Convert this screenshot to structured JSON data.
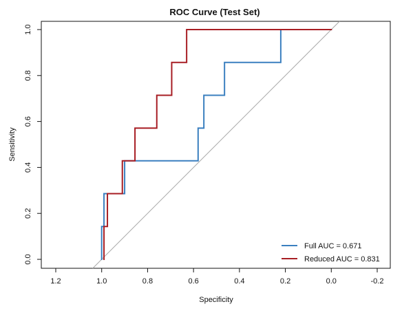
{
  "chart_data": {
    "type": "line",
    "title": "ROC Curve (Test Set)",
    "xlabel": "Specificity",
    "ylabel": "Sensitivity",
    "xlim": [
      1.2,
      -0.2
    ],
    "ylim": [
      0.0,
      1.0
    ],
    "x_reversed": true,
    "grid": false,
    "legend_position": "bottom-right",
    "x_ticks": [
      1.2,
      1.0,
      0.8,
      0.6,
      0.4,
      0.2,
      0.0,
      -0.2
    ],
    "x_tick_labels": [
      "1.2",
      "1.0",
      "0.8",
      "0.6",
      "0.4",
      "0.2",
      "0.0",
      "-0.2"
    ],
    "y_ticks": [
      0.0,
      0.2,
      0.4,
      0.6,
      0.8,
      1.0
    ],
    "y_tick_labels": [
      "0.0",
      "0.2",
      "0.4",
      "0.6",
      "0.8",
      "1.0"
    ],
    "diagonal": {
      "color": "#a8a8a8",
      "x": [
        1.0,
        0.0
      ],
      "y": [
        0.0,
        1.0
      ]
    },
    "series": [
      {
        "name": "Full",
        "legend_label": "Full  AUC = 0.671",
        "color": "#3a7fbf",
        "x": [
          1.0,
          1.0,
          0.99,
          0.99,
          0.9,
          0.9,
          0.58,
          0.58,
          0.555,
          0.555,
          0.465,
          0.465,
          0.22,
          0.22,
          0.0
        ],
        "y": [
          0.0,
          0.143,
          0.143,
          0.286,
          0.286,
          0.429,
          0.429,
          0.571,
          0.571,
          0.714,
          0.714,
          0.857,
          0.857,
          1.0,
          1.0
        ]
      },
      {
        "name": "Reduced",
        "legend_label": "Reduced AUC = 0.831",
        "color": "#a71d23",
        "x": [
          0.99,
          0.99,
          0.975,
          0.975,
          0.91,
          0.91,
          0.855,
          0.855,
          0.76,
          0.76,
          0.695,
          0.695,
          0.63,
          0.63,
          0.0
        ],
        "y": [
          0.0,
          0.143,
          0.143,
          0.286,
          0.286,
          0.429,
          0.429,
          0.571,
          0.571,
          0.714,
          0.714,
          0.857,
          0.857,
          1.0,
          1.0
        ]
      }
    ]
  }
}
